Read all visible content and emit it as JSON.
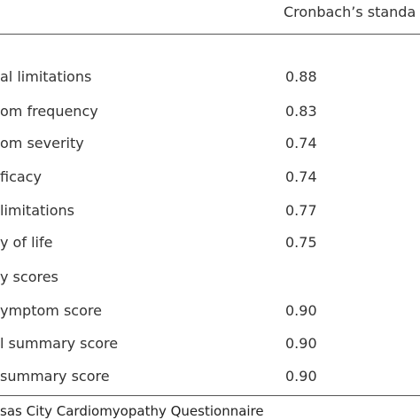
{
  "table": {
    "header": [
      "Cronbach’s standa"
    ],
    "rows": [
      [
        "al limitations",
        "0.88"
      ],
      [
        "om frequency",
        "0.83"
      ],
      [
        "om severity",
        "0.74"
      ],
      [
        "ficacy",
        "0.74"
      ],
      [
        "limitations",
        "0.77"
      ],
      [
        "y of life",
        "0.75"
      ],
      [
        "y scores"
      ],
      [
        "ymptom score",
        "0.90"
      ],
      [
        "l summary score",
        "0.90"
      ],
      [
        "summary score",
        "0.90"
      ]
    ],
    "footnote": "sas City Cardiomyopathy Questionnaire"
  }
}
